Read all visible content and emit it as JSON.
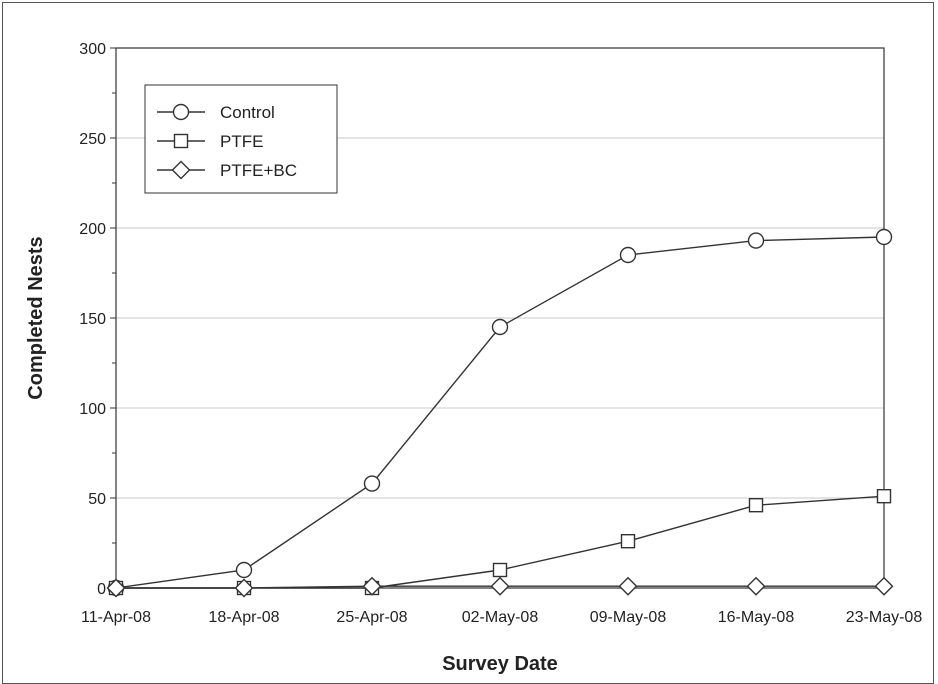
{
  "chart_data": {
    "type": "line",
    "title": "",
    "xlabel": "Survey Date",
    "ylabel": "Completed Nests",
    "categories": [
      "11-Apr-08",
      "18-Apr-08",
      "25-Apr-08",
      "02-May-08",
      "09-May-08",
      "16-May-08",
      "23-May-08"
    ],
    "ylim": [
      0,
      300
    ],
    "yticks": [
      0,
      50,
      100,
      150,
      200,
      250,
      300
    ],
    "grid": "horizontal",
    "legend_position": "top-left",
    "series": [
      {
        "name": "Control",
        "marker": "circle",
        "values": [
          0,
          10,
          58,
          145,
          185,
          193,
          195
        ]
      },
      {
        "name": "PTFE",
        "marker": "square",
        "values": [
          0,
          0,
          0,
          10,
          26,
          46,
          51
        ]
      },
      {
        "name": "PTFE+BC",
        "marker": "diamond",
        "values": [
          0,
          0,
          1,
          1,
          1,
          1,
          1
        ]
      }
    ],
    "colors": {
      "line": "#333333",
      "marker_fill": "#ffffff",
      "grid": "#c8c8c8"
    }
  }
}
